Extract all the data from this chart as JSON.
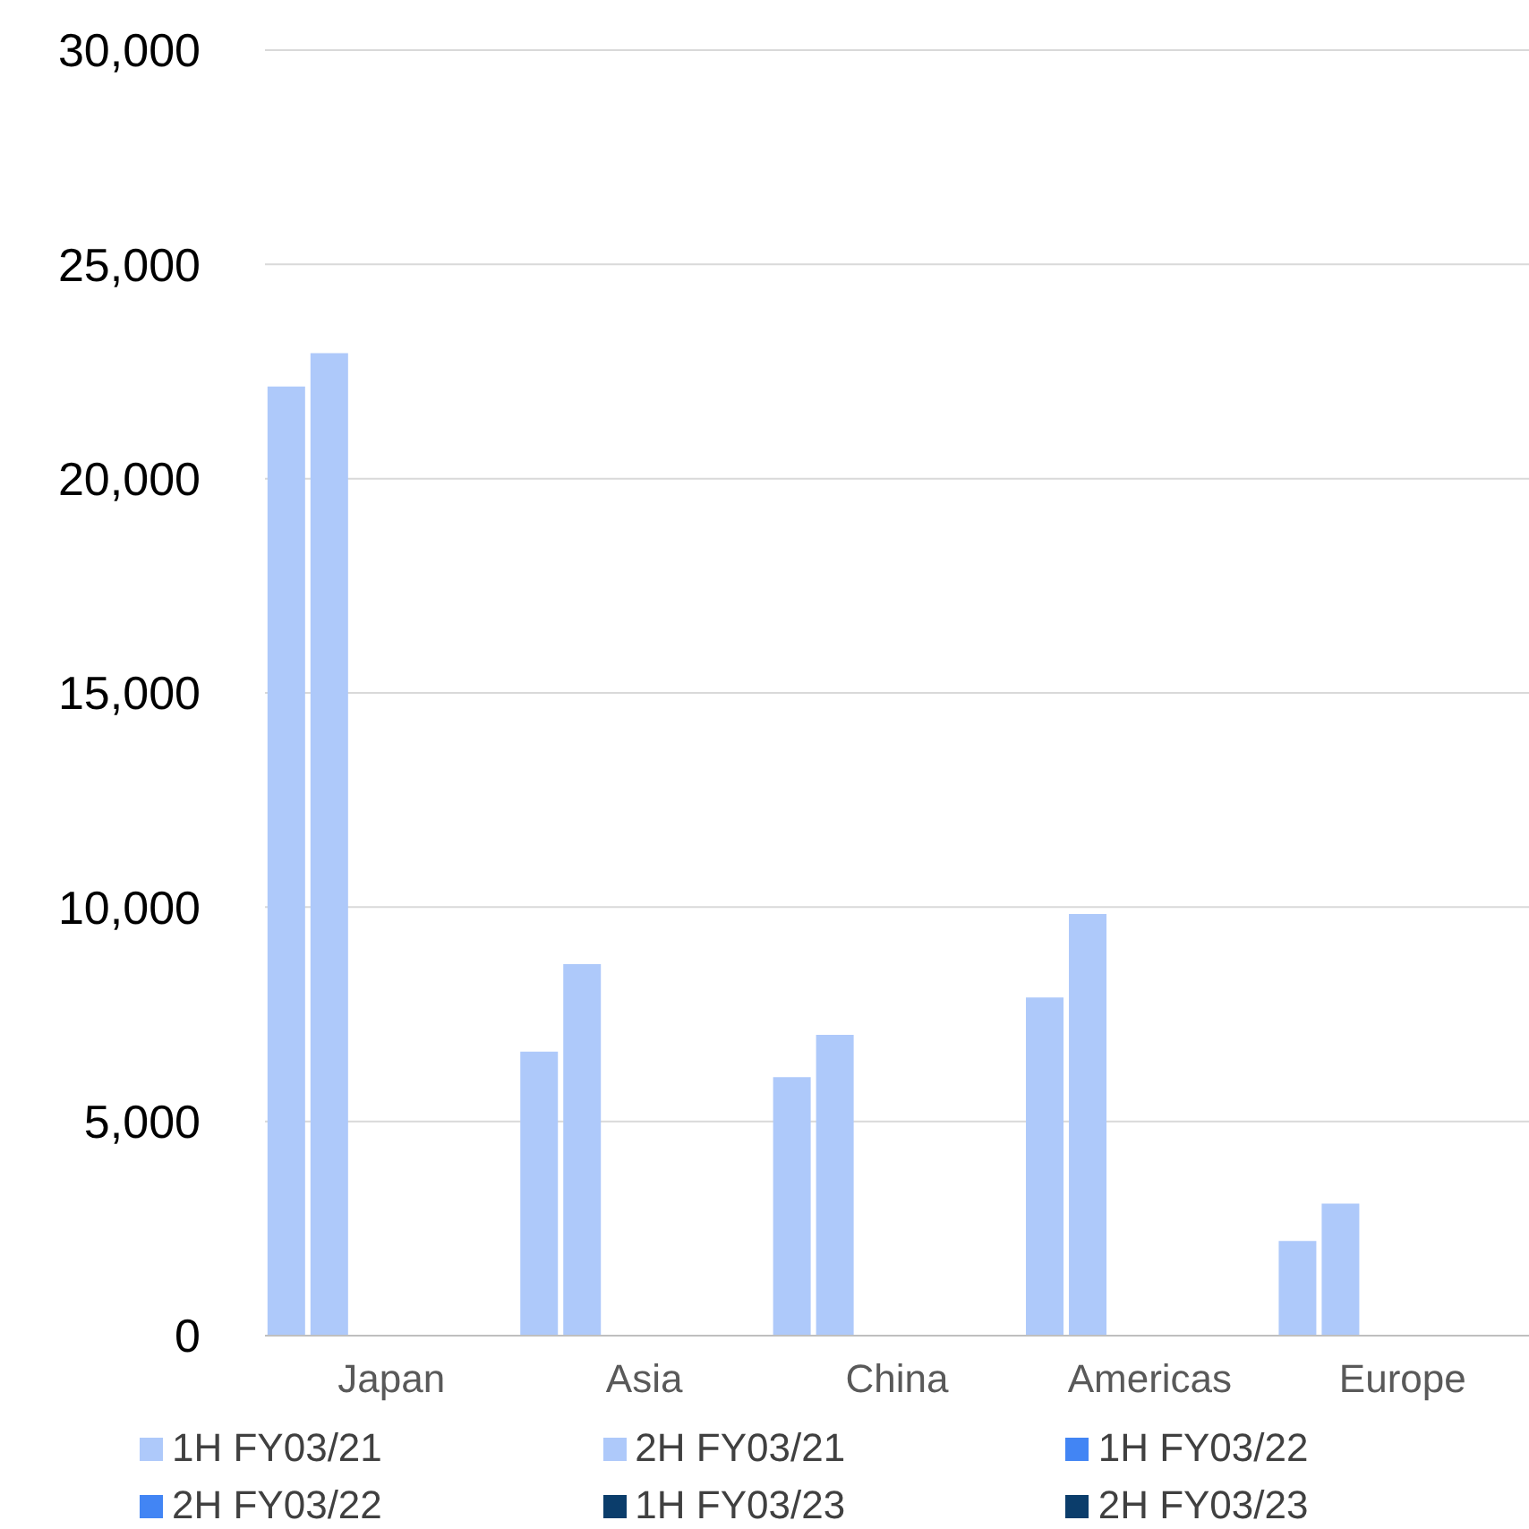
{
  "chart_data": {
    "type": "bar",
    "categories": [
      "Japan",
      "Asia",
      "China",
      "Americas",
      "Europe"
    ],
    "series": [
      {
        "name": "1H FY03/21",
        "color": "#aec9fa",
        "values": [
          22150,
          6630,
          6030,
          7890,
          2210
        ]
      },
      {
        "name": "2H FY03/21",
        "color": "#aec9fa",
        "values": [
          22930,
          8670,
          7020,
          9840,
          3080
        ]
      },
      {
        "name": "1H FY03/22",
        "color": "#4285f4",
        "values": [
          null,
          null,
          null,
          null,
          null
        ]
      },
      {
        "name": "2H FY03/22",
        "color": "#4285f4",
        "values": [
          null,
          null,
          null,
          null,
          null
        ]
      },
      {
        "name": "1H FY03/23",
        "color": "#0b3d6b",
        "values": [
          null,
          null,
          null,
          null,
          null
        ]
      },
      {
        "name": "2H FY03/23",
        "color": "#0b3d6b",
        "values": [
          null,
          null,
          null,
          null,
          null
        ]
      }
    ],
    "ylim": [
      0,
      30000
    ],
    "yticks": [
      0,
      {
        "value": 5000,
        "label": "5,000"
      },
      {
        "value": 10000,
        "label": "10,000"
      },
      {
        "value": 15000,
        "label": "15,000"
      },
      {
        "value": 20000,
        "label": "20,000"
      },
      {
        "value": 25000,
        "label": "25,000"
      },
      {
        "value": 30000,
        "label": "30,000"
      }
    ],
    "grid": "y",
    "legend": "bottom"
  }
}
